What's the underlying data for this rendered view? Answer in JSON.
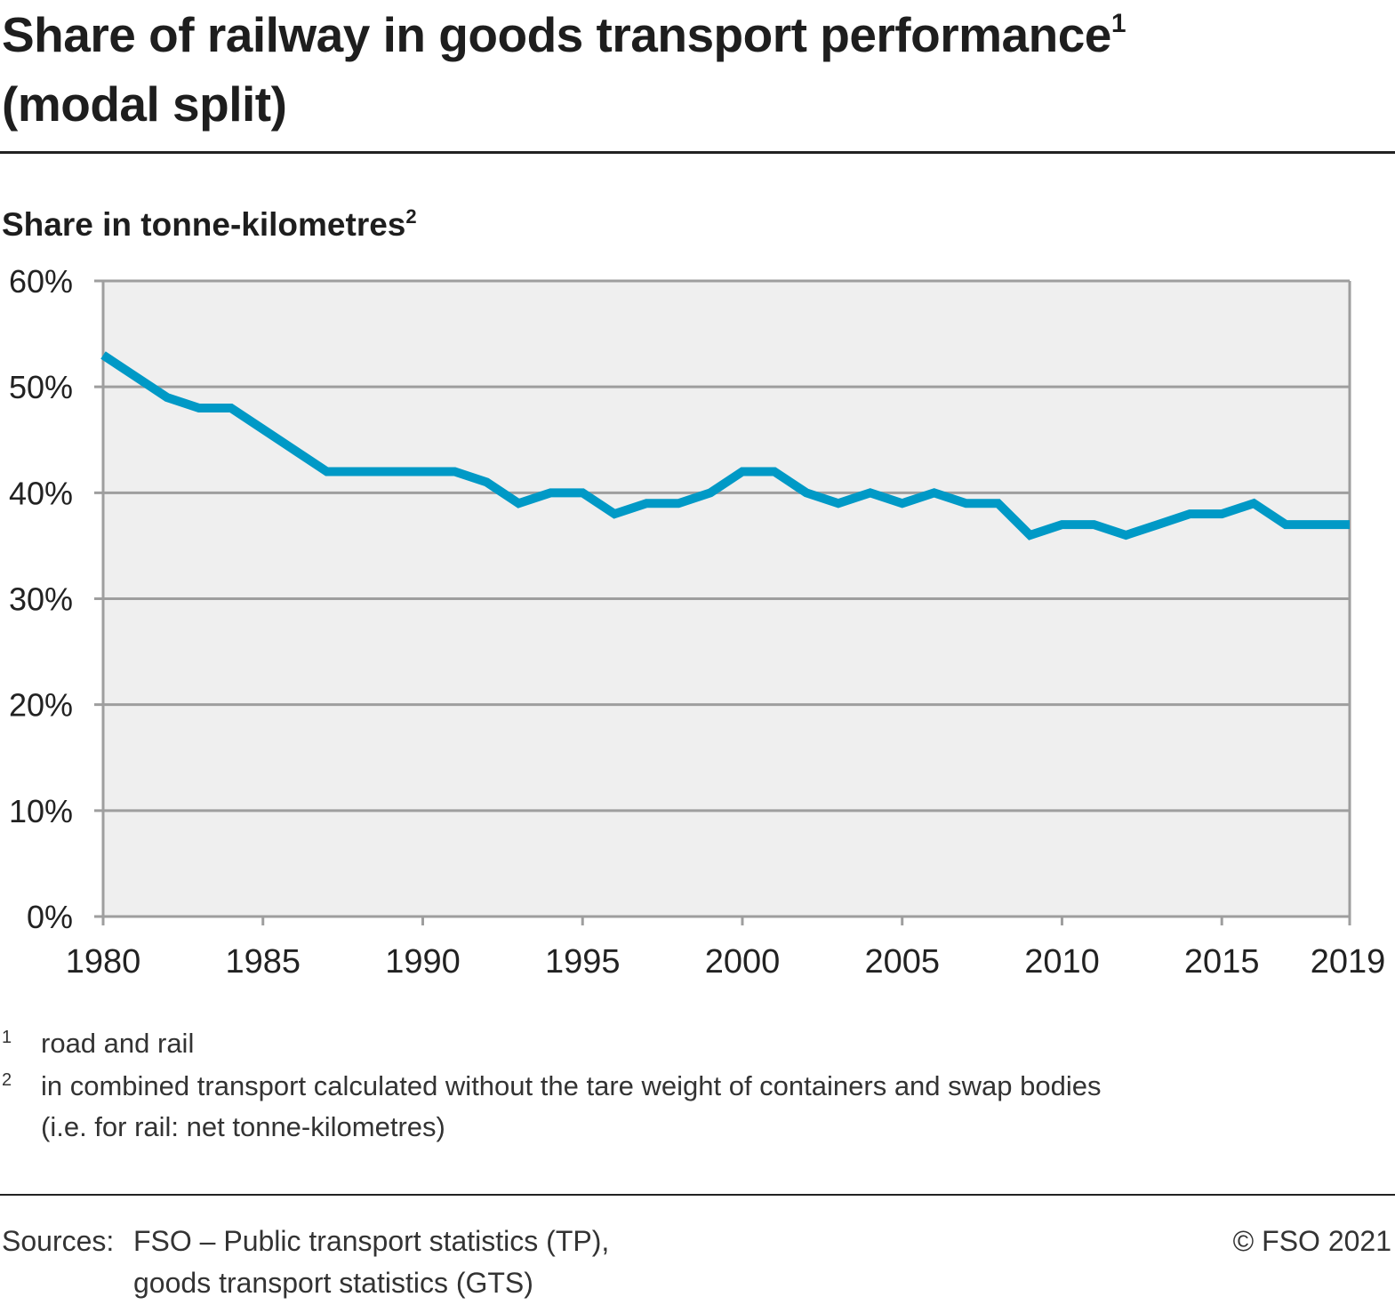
{
  "title": {
    "line1": "Share of railway in goods transport performance",
    "line1_sup": "1",
    "line2": "(modal split)"
  },
  "subtitle": {
    "text": "Share in tonne-kilometres",
    "sup": "2"
  },
  "chart_data": {
    "type": "line",
    "title": "Share of railway in goods transport performance (modal split)",
    "ylabel": "Share in tonne-kilometres",
    "xlabel": "",
    "x": [
      1980,
      1981,
      1982,
      1983,
      1984,
      1985,
      1986,
      1987,
      1988,
      1989,
      1990,
      1991,
      1992,
      1993,
      1994,
      1995,
      1996,
      1997,
      1998,
      1999,
      2000,
      2001,
      2002,
      2003,
      2004,
      2005,
      2006,
      2007,
      2008,
      2009,
      2010,
      2011,
      2012,
      2013,
      2014,
      2015,
      2016,
      2017,
      2018,
      2019
    ],
    "series": [
      {
        "name": "Railway share",
        "color": "#0099c6",
        "values": [
          53,
          51,
          49,
          48,
          48,
          46,
          44,
          42,
          42,
          42,
          42,
          42,
          41,
          39,
          40,
          40,
          38,
          39,
          39,
          40,
          42,
          42,
          40,
          39,
          40,
          39,
          40,
          39,
          39,
          36,
          37,
          37,
          36,
          37,
          38,
          38,
          39,
          37,
          37,
          37
        ]
      }
    ],
    "xlim": [
      1980,
      2019
    ],
    "ylim": [
      0,
      60
    ],
    "xticks": [
      "1980",
      "1985",
      "1990",
      "1995",
      "2000",
      "2005",
      "2010",
      "2015",
      "2019"
    ],
    "yticks": [
      "0%",
      "10%",
      "20%",
      "30%",
      "40%",
      "50%",
      "60%"
    ],
    "grid": true,
    "legend": "none",
    "colors": {
      "line": "#0099c6",
      "plot_bg": "#efefef",
      "grid": "#9e9e9e"
    }
  },
  "footnotes": [
    {
      "num": "1",
      "lines": [
        "road and rail"
      ]
    },
    {
      "num": "2",
      "lines": [
        "in combined transport calculated without the tare weight of containers and swap bodies",
        "(i.e. for rail: net tonne-kilometres)"
      ]
    }
  ],
  "sources": {
    "label": "Sources:",
    "lines": [
      "FSO – Public transport statistics (TP),",
      "goods transport statistics (GTS)"
    ],
    "copyright": "© FSO 2021"
  }
}
